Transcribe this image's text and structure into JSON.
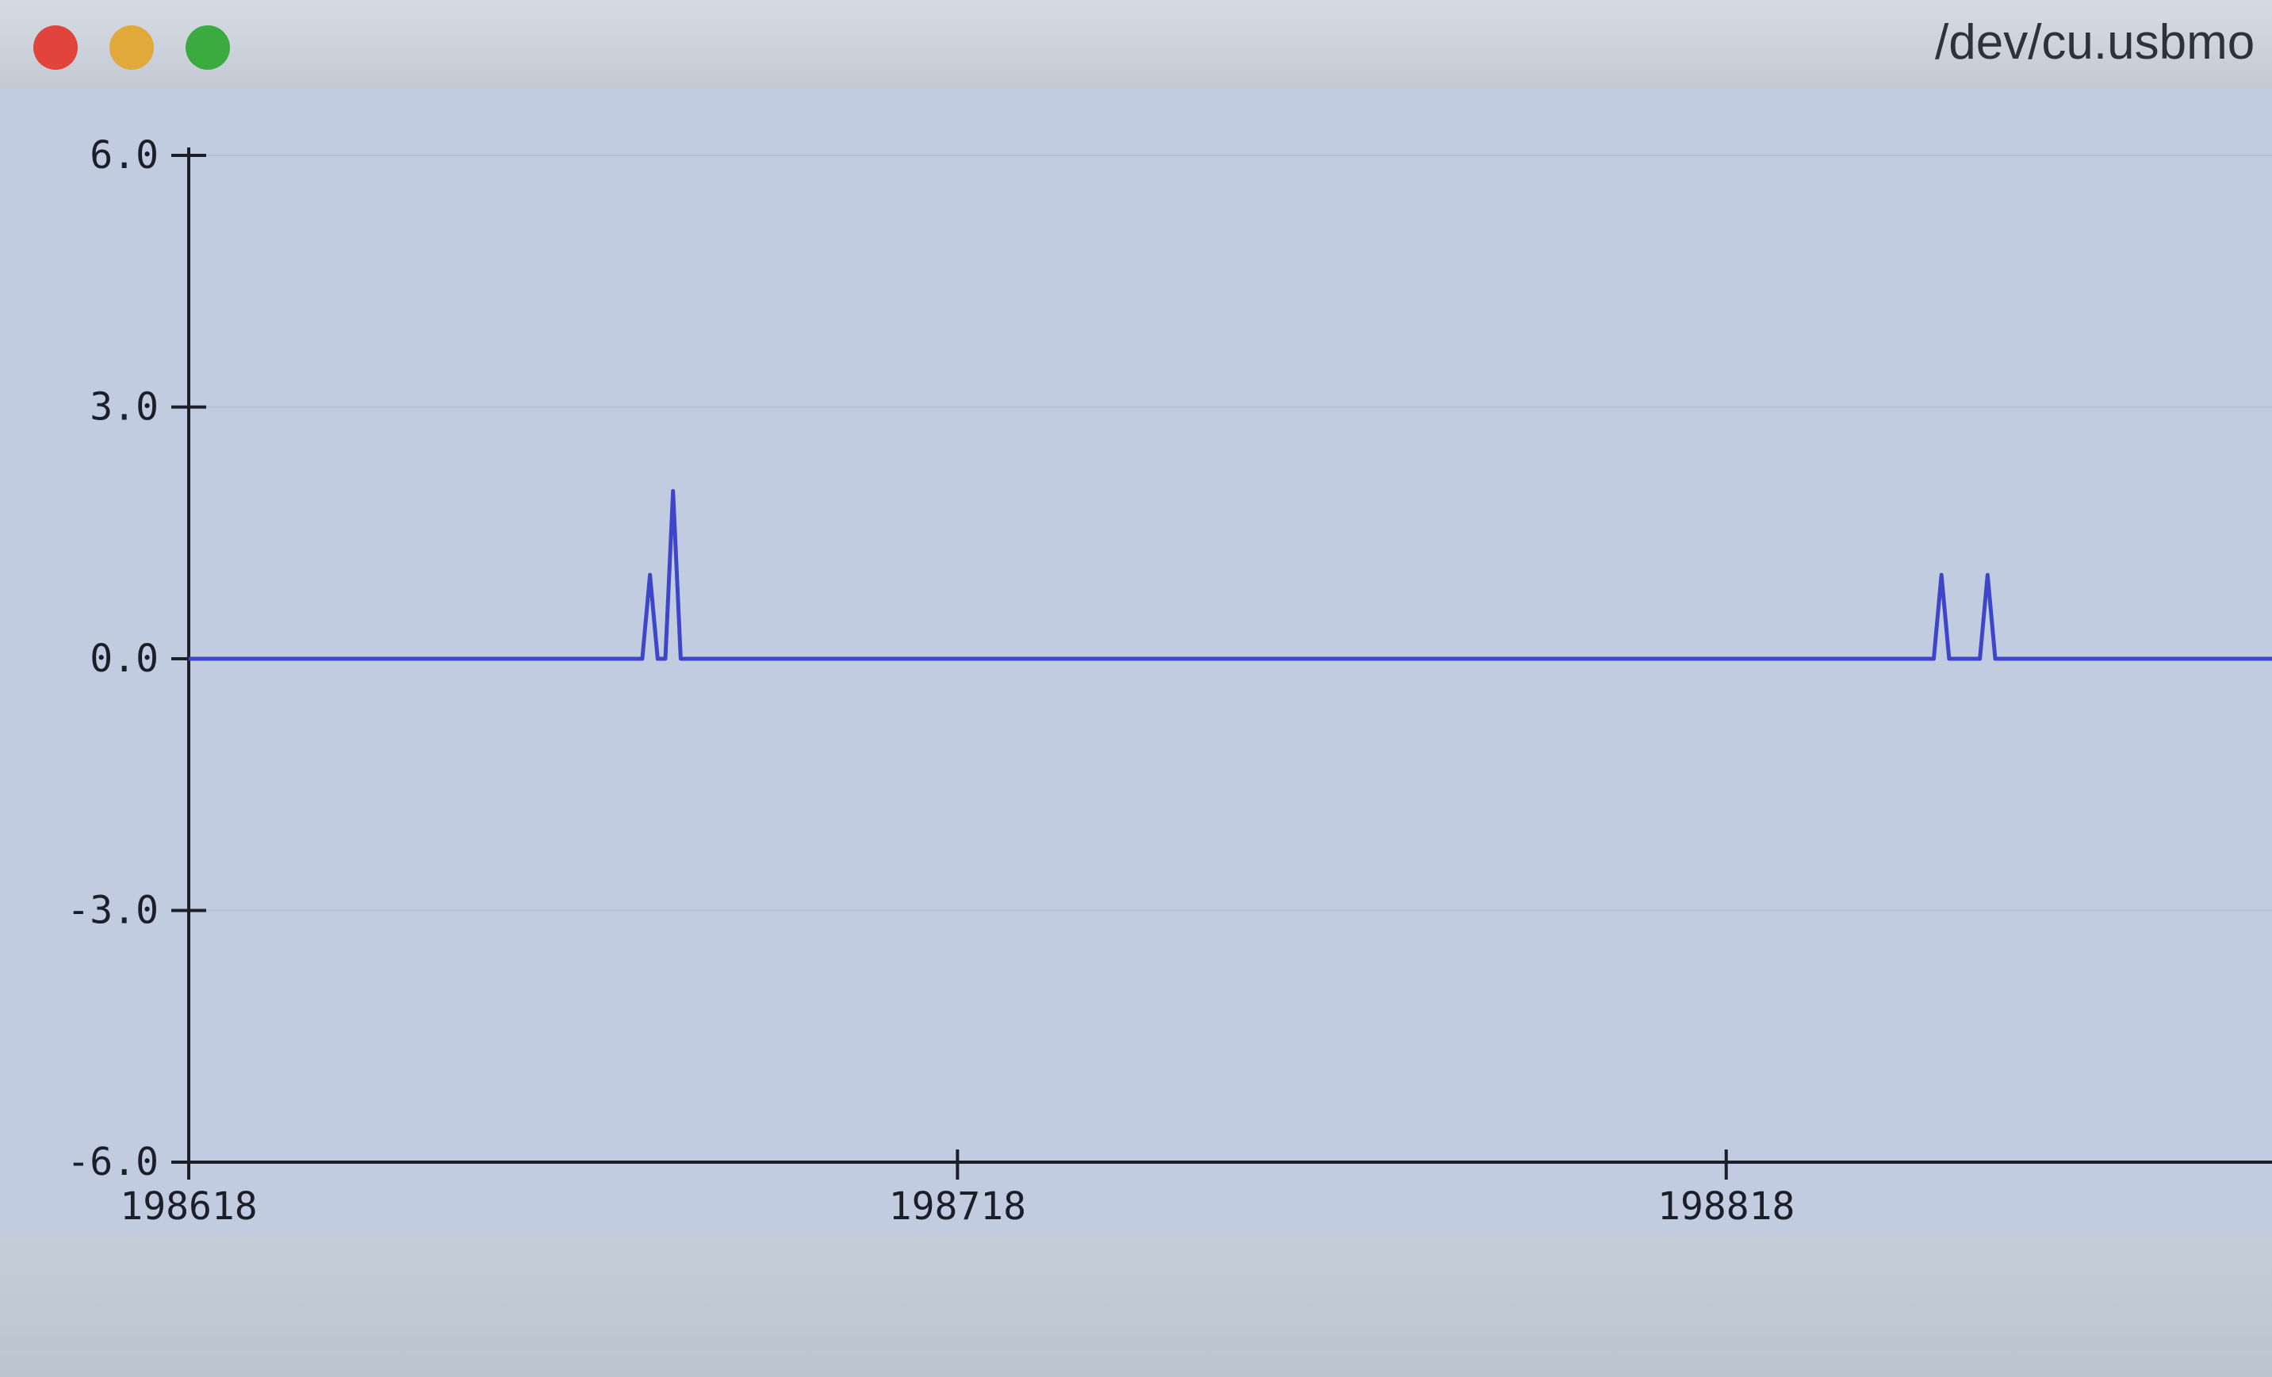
{
  "window": {
    "title": "/dev/cu.usbmo",
    "buttons": {
      "close_icon": "close-icon",
      "minimize_icon": "minimize-icon",
      "maximize_icon": "maximize-icon"
    }
  },
  "colors": {
    "line": "#3d46c8",
    "axis": "#1c1f2a",
    "background": "#c1cce0",
    "grid": "#b4c0d3"
  },
  "chart_data": {
    "type": "line",
    "title": "",
    "xlabel": "",
    "ylabel": "",
    "ylim": [
      -6.0,
      6.0
    ],
    "xlim": [
      198618,
      198889
    ],
    "y_ticks": [
      "6.0",
      "3.0",
      "0.0",
      "-3.0",
      "-6.0"
    ],
    "x_ticks": [
      "198618",
      "198718",
      "198818"
    ],
    "grid": true,
    "series": [
      {
        "values": [
          [
            198618,
            0
          ],
          [
            198677,
            0
          ],
          [
            198678,
            1
          ],
          [
            198679,
            0
          ],
          [
            198680,
            0
          ],
          [
            198681,
            2
          ],
          [
            198682,
            0
          ],
          [
            198845,
            0
          ],
          [
            198846,
            1
          ],
          [
            198847,
            0
          ],
          [
            198851,
            0
          ],
          [
            198852,
            1
          ],
          [
            198853,
            0
          ],
          [
            198889,
            0
          ]
        ]
      }
    ]
  }
}
